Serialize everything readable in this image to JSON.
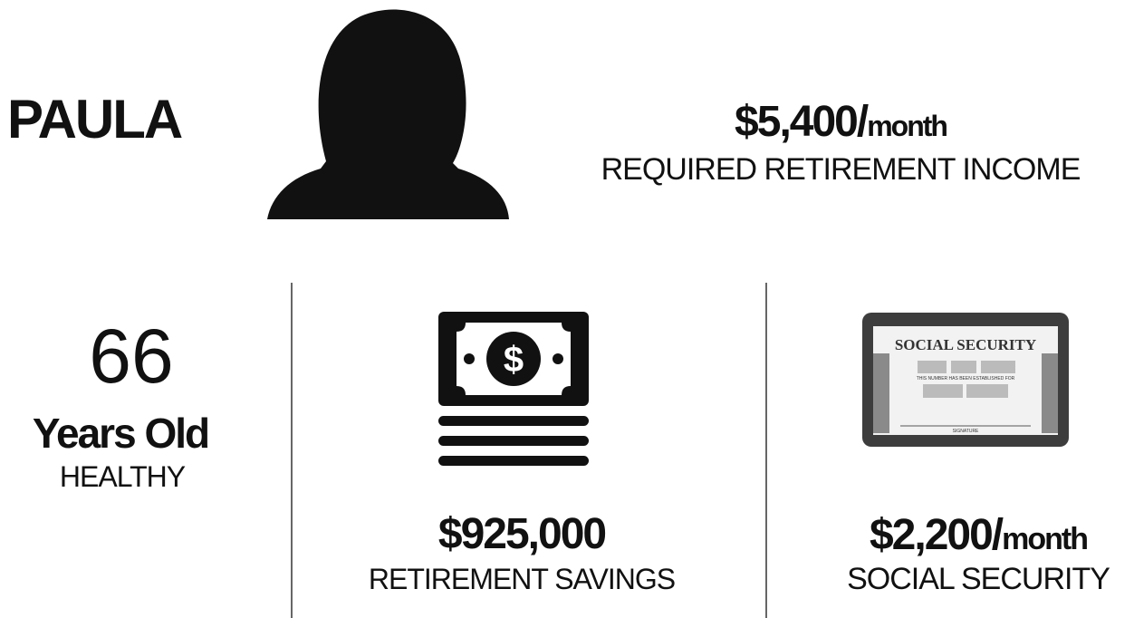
{
  "profile": {
    "name": "PAULA"
  },
  "income": {
    "amount": "$5,400/",
    "unit": "month",
    "label": "REQUIRED RETIREMENT INCOME"
  },
  "age": {
    "value": "66",
    "unit": "Years Old",
    "status": "HEALTHY"
  },
  "savings": {
    "amount": "$925,000",
    "label": "RETIREMENT SAVINGS"
  },
  "social_security": {
    "amount": "$2,200/",
    "unit": "month",
    "label": "SOCIAL SECURITY",
    "card": {
      "title": "SOCIAL SECURITY",
      "line": "THIS NUMBER HAS BEEN ESTABLISHED FOR",
      "signature": "SIGNATURE"
    }
  }
}
